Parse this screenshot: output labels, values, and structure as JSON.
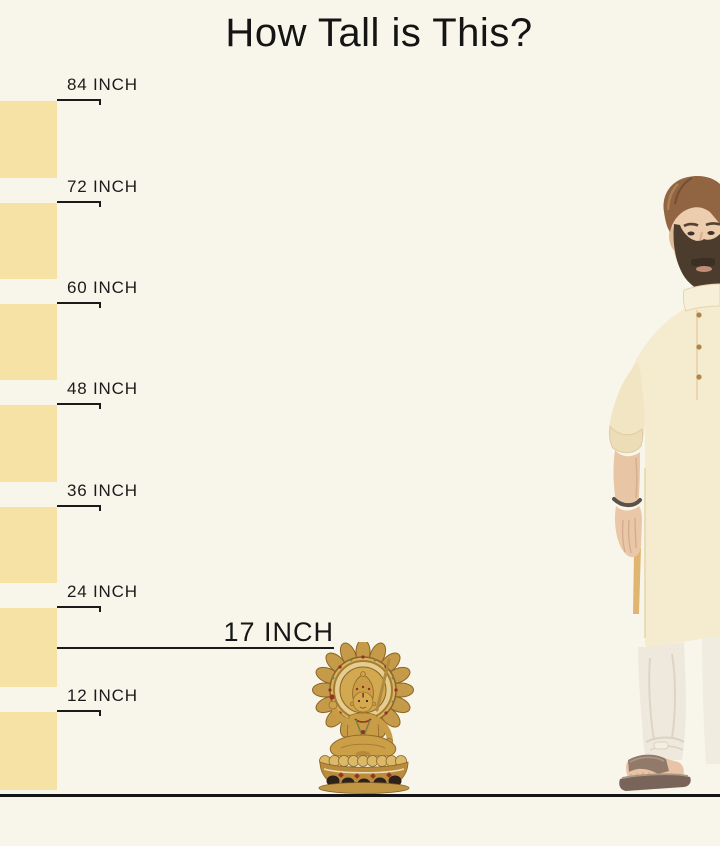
{
  "title": "How Tall is This?",
  "ruler": {
    "unit": "INCH",
    "ticks": [
      {
        "value": 84,
        "label": "84 INCH"
      },
      {
        "value": 72,
        "label": "72 INCH"
      },
      {
        "value": 60,
        "label": "60 INCH"
      },
      {
        "value": 48,
        "label": "48 INCH"
      },
      {
        "value": 36,
        "label": "36 INCH"
      },
      {
        "value": 24,
        "label": "24 INCH"
      },
      {
        "value": 12,
        "label": "12 INCH"
      }
    ]
  },
  "product": {
    "label": "17 INCH",
    "height_inches": 17,
    "item": "gold-brass-deity-statue-on-lotus-base"
  },
  "reference": {
    "item": "man-in-cream-kurta-standing-for-scale"
  },
  "colors": {
    "background": "#f8f6eb",
    "ruler_block": "#f5e2a4",
    "text": "#1b1b1b",
    "line": "#1a1a1a",
    "statue_gold": "#c59a48",
    "kurta_cream": "#f5ebcd"
  }
}
